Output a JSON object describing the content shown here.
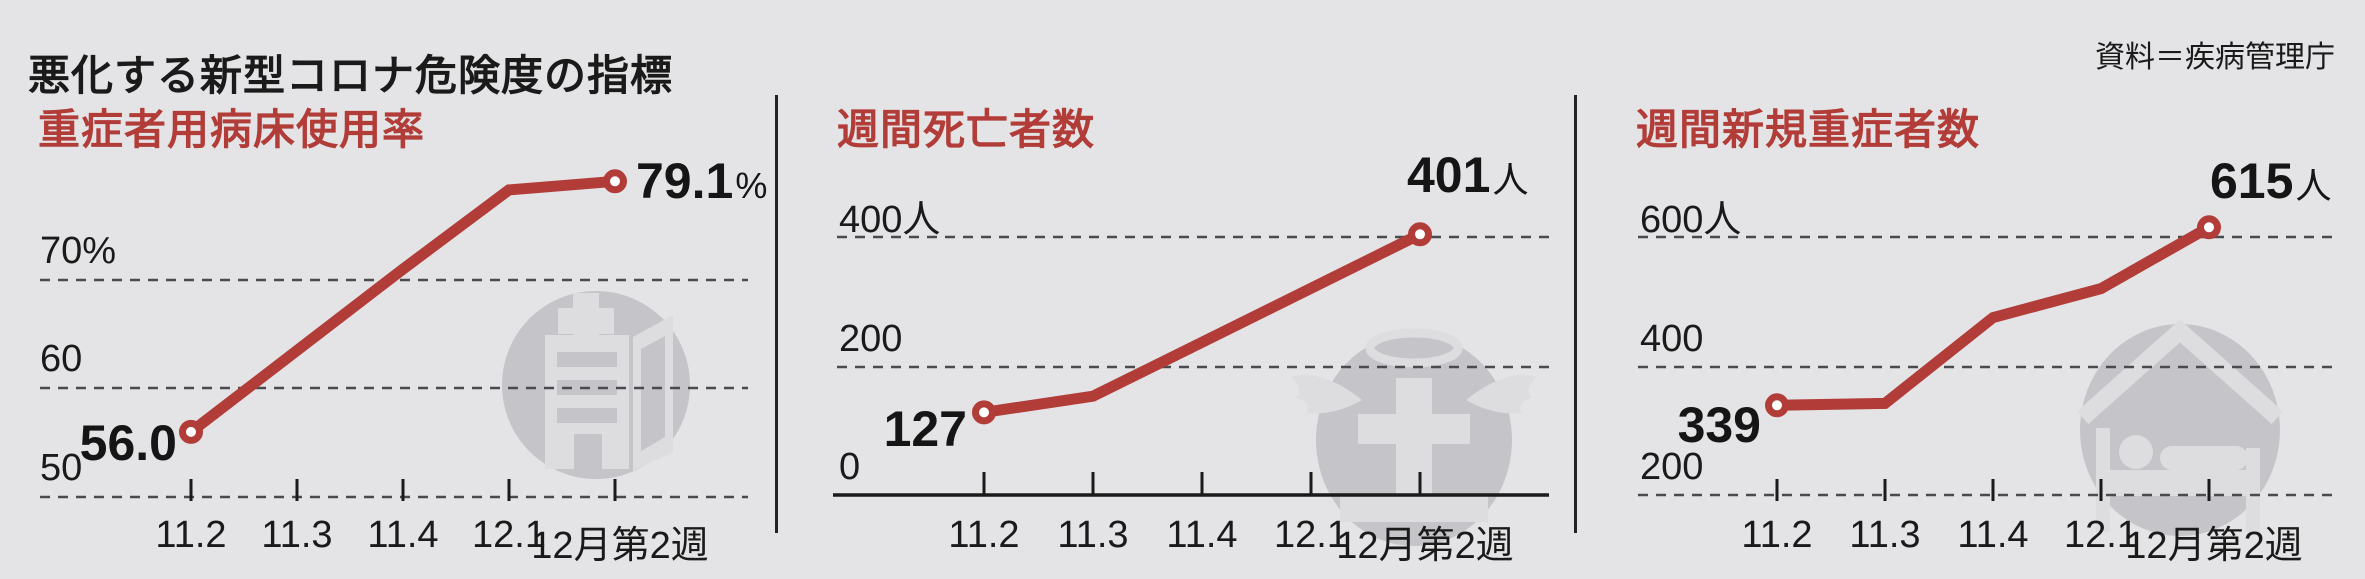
{
  "page": {
    "title": "悪化する新型コロナ危険度の指標",
    "source": "資料＝疾病管理庁",
    "colors": {
      "background": "#e4e4e6",
      "accent_red": "#b13c38",
      "text": "#1a1a1a",
      "gridline": "#4a4b4f",
      "icon_gray": "#c5c5c9",
      "icon_light": "#dddde0"
    }
  },
  "chart_data": [
    {
      "type": "line",
      "title": "重症者用病床使用率",
      "x": [
        "11.2",
        "11.3",
        "11.4",
        "12.1",
        "12月第2週"
      ],
      "values": [
        56.0,
        63.5,
        71.0,
        78.3,
        79.1
      ],
      "unit": "%",
      "ylim": [
        50,
        82
      ],
      "y_ticks": [
        {
          "label": "70%",
          "value": 70
        },
        {
          "label": "60",
          "value": 60
        },
        {
          "label": "50",
          "value": 50
        }
      ],
      "grid": "dashed-horizontal",
      "baseline_style": "dashed",
      "legend": "none",
      "first_label": "56.0",
      "last_label": "79.1",
      "last_unit": "%",
      "icon": "hospital-building-icon"
    },
    {
      "type": "line",
      "title": "週間死亡者数",
      "x": [
        "11.2",
        "11.3",
        "11.4",
        "12.1",
        "12月第2週"
      ],
      "values": [
        127,
        152,
        235,
        318,
        401
      ],
      "unit": "人",
      "ylim": [
        0,
        440
      ],
      "y_ticks": [
        {
          "label": "400人",
          "value": 400
        },
        {
          "label": "200",
          "value": 200
        },
        {
          "label": "0",
          "value": 0
        }
      ],
      "grid": "dashed-horizontal",
      "baseline_style": "solid",
      "legend": "none",
      "first_label": "127",
      "last_label": "401",
      "last_unit": "人",
      "icon": "tombstone-angel-icon"
    },
    {
      "type": "line",
      "title": "週間新規重症者数",
      "x": [
        "11.2",
        "11.3",
        "11.4",
        "12.1",
        "12月第2週"
      ],
      "values": [
        339,
        342,
        475,
        520,
        615
      ],
      "unit": "人",
      "ylim": [
        200,
        660
      ],
      "y_ticks": [
        {
          "label": "600人",
          "value": 600
        },
        {
          "label": "400",
          "value": 400
        },
        {
          "label": "200",
          "value": 200
        }
      ],
      "grid": "dashed-horizontal",
      "baseline_style": "dashed",
      "legend": "none",
      "first_label": "339",
      "last_label": "615",
      "last_unit": "人",
      "icon": "hospital-bed-icon"
    }
  ]
}
